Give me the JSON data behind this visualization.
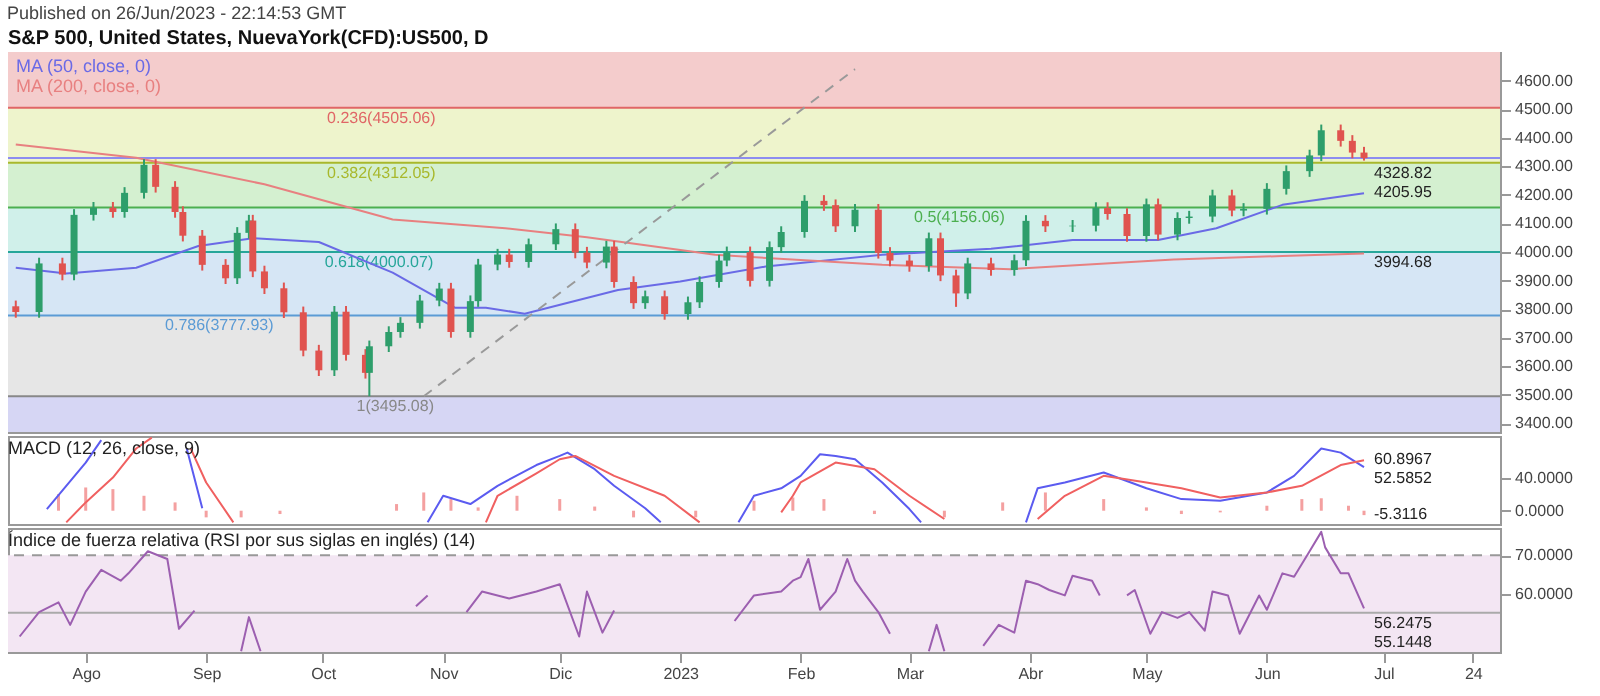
{
  "chart_data": [
    {
      "type": "candlestick",
      "title": "S&P 500, United States, NuevaYork(CFD):US500, D",
      "x": [
        "2022-07-14",
        "2022-07-20",
        "2022-07-26",
        "2022-07-29",
        "2022-08-03",
        "2022-08-08",
        "2022-08-11",
        "2022-08-16",
        "2022-08-19",
        "2022-08-24",
        "2022-08-26",
        "2022-08-31",
        "2022-09-06",
        "2022-09-09",
        "2022-09-12",
        "2022-09-13",
        "2022-09-16",
        "2022-09-21",
        "2022-09-26",
        "2022-09-30",
        "2022-10-04",
        "2022-10-07",
        "2022-10-12",
        "2022-10-13",
        "2022-10-18",
        "2022-10-21",
        "2022-10-26",
        "2022-10-31",
        "2022-11-03",
        "2022-11-08",
        "2022-11-10",
        "2022-11-15",
        "2022-11-18",
        "2022-11-23",
        "2022-11-30",
        "2022-12-05",
        "2022-12-08",
        "2022-12-13",
        "2022-12-15",
        "2022-12-20",
        "2022-12-23",
        "2022-12-28",
        "2023-01-03",
        "2023-01-06",
        "2023-01-11",
        "2023-01-13",
        "2023-01-19",
        "2023-01-24",
        "2023-01-27",
        "2023-02-02",
        "2023-02-07",
        "2023-02-10",
        "2023-02-15",
        "2023-02-21",
        "2023-02-24",
        "2023-03-01",
        "2023-03-06",
        "2023-03-09",
        "2023-03-13",
        "2023-03-16",
        "2023-03-22",
        "2023-03-28",
        "2023-03-31",
        "2023-04-05",
        "2023-04-12",
        "2023-04-18",
        "2023-04-21",
        "2023-04-26",
        "2023-05-01",
        "2023-05-04",
        "2023-05-09",
        "2023-05-12",
        "2023-05-18",
        "2023-05-23",
        "2023-05-26",
        "2023-06-01",
        "2023-06-06",
        "2023-06-12",
        "2023-06-15",
        "2023-06-20",
        "2023-06-23",
        "2023-06-26"
      ],
      "ohlc": [
        [
          3810,
          3830,
          3770,
          3790
        ],
        [
          3790,
          3980,
          3770,
          3960
        ],
        [
          3960,
          3980,
          3901,
          3921
        ],
        [
          3921,
          4150,
          3901,
          4130
        ],
        [
          4130,
          4175,
          4110,
          4155
        ],
        [
          4155,
          4175,
          4120,
          4140
        ],
        [
          4140,
          4227,
          4120,
          4207
        ],
        [
          4207,
          4325,
          4187,
          4305
        ],
        [
          4305,
          4325,
          4208,
          4228
        ],
        [
          4228,
          4248,
          4120,
          4140
        ],
        [
          4140,
          4160,
          4037,
          4057
        ],
        [
          4057,
          4077,
          3935,
          3955
        ],
        [
          3955,
          3975,
          3888,
          3908
        ],
        [
          3908,
          4087,
          3888,
          4067
        ],
        [
          4067,
          4130,
          4047,
          4110
        ],
        [
          4110,
          4130,
          3912,
          3932
        ],
        [
          3932,
          3952,
          3853,
          3873
        ],
        [
          3873,
          3893,
          3769,
          3789
        ],
        [
          3789,
          3809,
          3635,
          3655
        ],
        [
          3655,
          3675,
          3566,
          3586
        ],
        [
          3586,
          3811,
          3566,
          3791
        ],
        [
          3791,
          3811,
          3620,
          3640
        ],
        [
          3640,
          3660,
          3557,
          3577
        ],
        [
          3577,
          3690,
          3495,
          3670
        ],
        [
          3670,
          3740,
          3650,
          3720
        ],
        [
          3720,
          3772,
          3700,
          3752
        ],
        [
          3752,
          3850,
          3732,
          3830
        ],
        [
          3830,
          3892,
          3810,
          3872
        ],
        [
          3872,
          3892,
          3700,
          3720
        ],
        [
          3720,
          3848,
          3700,
          3828
        ],
        [
          3828,
          3976,
          3808,
          3956
        ],
        [
          3956,
          4011,
          3936,
          3991
        ],
        [
          3991,
          4011,
          3945,
          3965
        ],
        [
          3965,
          4047,
          3945,
          4027
        ],
        [
          4027,
          4100,
          4007,
          4080
        ],
        [
          4080,
          4100,
          3978,
          3998
        ],
        [
          3998,
          4018,
          3943,
          3963
        ],
        [
          3963,
          4039,
          3943,
          4019
        ],
        [
          4019,
          4039,
          3875,
          3895
        ],
        [
          3895,
          3915,
          3801,
          3821
        ],
        [
          3821,
          3865,
          3801,
          3845
        ],
        [
          3845,
          3865,
          3763,
          3783
        ],
        [
          3783,
          3844,
          3763,
          3824
        ],
        [
          3824,
          3915,
          3804,
          3895
        ],
        [
          3895,
          3990,
          3875,
          3970
        ],
        [
          3970,
          4019,
          3950,
          3999
        ],
        [
          3999,
          4019,
          3879,
          3899
        ],
        [
          3899,
          4037,
          3879,
          4017
        ],
        [
          4017,
          4090,
          3997,
          4070
        ],
        [
          4070,
          4199,
          4050,
          4179
        ],
        [
          4179,
          4199,
          4144,
          4164
        ],
        [
          4164,
          4184,
          4070,
          4090
        ],
        [
          4090,
          4168,
          4070,
          4148
        ],
        [
          4148,
          4168,
          3977,
          3997
        ],
        [
          3997,
          4017,
          3950,
          3970
        ],
        [
          3970,
          3990,
          3931,
          3951
        ],
        [
          3951,
          4068,
          3931,
          4048
        ],
        [
          4048,
          4068,
          3898,
          3918
        ],
        [
          3918,
          3938,
          3808,
          3855
        ],
        [
          3855,
          3980,
          3835,
          3960
        ],
        [
          3960,
          3980,
          3917,
          3937
        ],
        [
          3937,
          3991,
          3917,
          3971
        ],
        [
          3971,
          4129,
          3951,
          4109
        ],
        [
          4109,
          4129,
          4070,
          4090
        ],
        [
          4090,
          4112,
          4070,
          4092
        ],
        [
          4092,
          4174,
          4072,
          4154
        ],
        [
          4154,
          4174,
          4113,
          4133
        ],
        [
          4133,
          4153,
          4036,
          4056
        ],
        [
          4056,
          4187,
          4036,
          4167
        ],
        [
          4167,
          4187,
          4041,
          4061
        ],
        [
          4061,
          4139,
          4041,
          4119
        ],
        [
          4119,
          4144,
          4099,
          4124
        ],
        [
          4124,
          4218,
          4104,
          4198
        ],
        [
          4198,
          4218,
          4125,
          4145
        ],
        [
          4145,
          4171,
          4125,
          4151
        ],
        [
          4151,
          4241,
          4131,
          4221
        ],
        [
          4221,
          4303,
          4201,
          4283
        ],
        [
          4283,
          4358,
          4263,
          4338
        ],
        [
          4338,
          4446,
          4318,
          4426
        ],
        [
          4426,
          4446,
          4369,
          4389
        ],
        [
          4389,
          4409,
          4328,
          4348
        ],
        [
          4348,
          4368,
          4320,
          4328.82
        ]
      ],
      "colors": [
        "#e0534f",
        "#2e9e6b",
        "#e0534f",
        "#2e9e6b",
        "#2e9e6b",
        "#e0534f",
        "#2e9e6b",
        "#2e9e6b",
        "#e0534f",
        "#e0534f",
        "#e0534f",
        "#e0534f",
        "#e0534f",
        "#2e9e6b",
        "#2e9e6b",
        "#e0534f",
        "#e0534f",
        "#e0534f",
        "#e0534f",
        "#e0534f",
        "#2e9e6b",
        "#e0534f",
        "#e0534f",
        "#2e9e6b",
        "#2e9e6b",
        "#2e9e6b",
        "#2e9e6b",
        "#2e9e6b",
        "#e0534f",
        "#2e9e6b",
        "#2e9e6b",
        "#2e9e6b",
        "#e0534f",
        "#2e9e6b",
        "#2e9e6b",
        "#e0534f",
        "#e0534f",
        "#2e9e6b",
        "#e0534f",
        "#e0534f",
        "#2e9e6b",
        "#e0534f",
        "#2e9e6b",
        "#2e9e6b",
        "#2e9e6b",
        "#2e9e6b",
        "#e0534f",
        "#2e9e6b",
        "#2e9e6b",
        "#2e9e6b",
        "#e0534f",
        "#e0534f",
        "#2e9e6b",
        "#e0534f",
        "#e0534f",
        "#e0534f",
        "#2e9e6b",
        "#e0534f",
        "#e0534f",
        "#2e9e6b",
        "#e0534f",
        "#2e9e6b",
        "#2e9e6b",
        "#e0534f",
        "#2e9e6b",
        "#2e9e6b",
        "#e0534f",
        "#e0534f",
        "#2e9e6b",
        "#e0534f",
        "#2e9e6b",
        "#2e9e6b",
        "#2e9e6b",
        "#e0534f",
        "#2e9e6b",
        "#2e9e6b",
        "#2e9e6b",
        "#2e9e6b",
        "#2e9e6b",
        "#e0534f",
        "#e0534f",
        "#e0534f"
      ],
      "series": [
        {
          "name": "MA (50, close, 0)",
          "type": "line",
          "color": "#6a6ae6",
          "x": [
            "2022-07-14",
            "2022-07-27",
            "2022-08-14",
            "2022-08-30",
            "2022-09-13",
            "2022-09-30",
            "2022-10-19",
            "2022-11-04",
            "2022-11-12",
            "2022-11-22",
            "2022-12-16",
            "2023-01-01",
            "2023-01-23",
            "2023-02-22",
            "2023-03-22",
            "2023-04-12",
            "2023-05-04",
            "2023-05-19",
            "2023-06-05",
            "2023-06-26"
          ],
          "values": [
            3945,
            3925,
            3945,
            4021,
            4048,
            4035,
            3928,
            3805,
            3805,
            3784,
            3867,
            3897,
            3949,
            3990,
            4011,
            4042,
            4042,
            4083,
            4165,
            4205.95
          ]
        },
        {
          "name": "MA (200, close, 0)",
          "type": "line",
          "color": "#e88080",
          "x": [
            "2022-07-14",
            "2022-08-14",
            "2022-09-16",
            "2022-10-19",
            "2022-11-17",
            "2022-12-08",
            "2023-01-10",
            "2023-02-22",
            "2023-03-27",
            "2023-05-08",
            "2023-06-05",
            "2023-06-26"
          ],
          "values": [
            4376,
            4330,
            4237,
            4114,
            4083,
            4052,
            3990,
            3955,
            3940,
            3974,
            3986,
            3994.68
          ]
        },
        {
          "type": "line",
          "color": "#999999",
          "line_style": "dashed",
          "x": [
            "2022-10-27",
            "2023-02-15"
          ],
          "values": [
            3495.08,
            4640
          ]
        }
      ],
      "xlim": [
        "2022-07-12",
        "2023-07-31"
      ],
      "ylim": [
        3370,
        4700
      ],
      "yticks": [
        {
          "value": 3400,
          "label": "3400.00"
        },
        {
          "value": 3500,
          "label": "3500.00"
        },
        {
          "value": 3600,
          "label": "3600.00"
        },
        {
          "value": 3700,
          "label": "3700.00"
        },
        {
          "value": 3800,
          "label": "3800.00"
        },
        {
          "value": 3900,
          "label": "3900.00"
        },
        {
          "value": 4000,
          "label": "4000.00"
        },
        {
          "value": 4100,
          "label": "4100.00"
        },
        {
          "value": 4200,
          "label": "4200.00"
        },
        {
          "value": 4300,
          "label": "4300.00"
        },
        {
          "value": 4400,
          "label": "4400.00"
        },
        {
          "value": 4500,
          "label": "4500.00"
        },
        {
          "value": 4600,
          "label": "4600.00"
        }
      ],
      "tick_labels": "y",
      "bands": [
        {
          "axis": "y",
          "from": 4505.06,
          "to": 4700,
          "color": "#f4cccc"
        },
        {
          "axis": "y",
          "from": 4312.05,
          "to": 4505.06,
          "color": "#eef4cc"
        },
        {
          "axis": "y",
          "from": 4156.06,
          "to": 4312.05,
          "color": "#d4f0d0"
        },
        {
          "axis": "y",
          "from": 4000.07,
          "to": 4156.06,
          "color": "#d0f0ea"
        },
        {
          "axis": "y",
          "from": 3777.93,
          "to": 4000.07,
          "color": "#d6e6f5"
        },
        {
          "axis": "y",
          "from": 3495.08,
          "to": 3777.93,
          "color": "#e6e6e6"
        },
        {
          "axis": "y",
          "from": 3370,
          "to": 3495.08,
          "color": "#d6d6f4"
        }
      ],
      "ref_lines": [
        {
          "axis": "y",
          "value": 4328.82,
          "color": "#8c8cf0"
        },
        {
          "axis": "y",
          "value": 4505.06,
          "label": "0.236(4505.06)",
          "color": "#e06666"
        },
        {
          "axis": "y",
          "value": 4312.05,
          "label": "0.382(4312.05)",
          "color": "#a8b82c"
        },
        {
          "axis": "y",
          "value": 4156.06,
          "label": "0.5(4156.06)",
          "color": "#4caf50"
        },
        {
          "axis": "y",
          "value": 4000.07,
          "label": "0.618(4000.07)",
          "color": "#26a69a"
        },
        {
          "axis": "y",
          "value": 3777.93,
          "label": "0.786(3777.93)",
          "color": "#5b9bd5"
        },
        {
          "axis": "y",
          "value": 3495.08,
          "label": "1(3495.08)",
          "color": "#888888"
        }
      ],
      "annotations": [
        "Published on 26/Jun/2023 - 22:14:53 GMT",
        {
          "text": "4328.82",
          "x": "2023-06-26",
          "y": 4328.82
        },
        {
          "text": "4205.95",
          "x": "2023-06-26",
          "y": 4205.95
        },
        {
          "text": "3994.68",
          "x": "2023-06-26",
          "y": 3994.68
        }
      ]
    },
    {
      "type": "line",
      "title": "MACD (12, 26, close, 9)",
      "series": [
        {
          "type": "bar",
          "color": "#f4a0a0",
          "x": [
            "2022-07-25",
            "2022-08-01",
            "2022-08-08",
            "2022-08-16",
            "2022-08-24",
            "2022-09-01",
            "2022-09-10",
            "2022-09-20",
            "2022-10-20",
            "2022-10-27",
            "2022-11-03",
            "2022-11-10",
            "2022-11-20",
            "2022-12-01",
            "2022-12-10",
            "2022-12-20",
            "2023-01-05",
            "2023-01-20",
            "2023-01-30",
            "2023-02-07",
            "2023-02-20",
            "2023-03-10",
            "2023-03-25",
            "2023-04-05",
            "2023-04-20",
            "2023-05-01",
            "2023-05-10",
            "2023-05-20",
            "2023-06-01",
            "2023-06-10",
            "2023-06-15",
            "2023-06-22",
            "2023-06-26"
          ],
          "values": [
            20,
            28,
            26,
            18,
            10,
            -8,
            -8,
            -4,
            8,
            22,
            14,
            4,
            18,
            14,
            5,
            -8,
            -8,
            12,
            16,
            14,
            -4,
            -8,
            10,
            22,
            14,
            4,
            -4,
            -2,
            6,
            14,
            15,
            6,
            -5.3116
          ]
        },
        {
          "color": "#5b5bf0",
          "x": [
            "2022-07-22",
            "2022-08-01",
            "2022-08-05",
            "2022-08-08",
            "2022-08-24",
            "2022-08-27",
            "2022-08-31",
            "2022-09-03",
            "2022-10-26",
            "2022-10-28",
            "2022-11-01",
            "2022-11-08",
            "2022-11-15",
            "2022-11-25",
            "2022-12-01",
            "2022-12-03",
            "2022-12-10",
            "2022-12-15",
            "2022-12-23",
            "2022-12-27",
            "2022-12-30",
            "2023-01-14",
            "2023-01-16",
            "2023-01-20",
            "2023-01-27",
            "2023-02-01",
            "2023-02-06",
            "2023-02-10",
            "2023-02-15",
            "2023-02-22",
            "2023-03-01",
            "2023-03-04",
            "2023-03-06",
            "2023-03-29",
            "2023-03-31",
            "2023-04-03",
            "2023-04-10",
            "2023-04-20",
            "2023-05-01",
            "2023-05-10",
            "2023-05-20",
            "2023-06-01",
            "2023-06-08",
            "2023-06-15",
            "2023-06-20",
            "2023-06-26"
          ],
          "values": [
            2,
            58,
            85,
            null,
            null,
            75,
            3,
            null,
            null,
            -14,
            18,
            8,
            30,
            55,
            66,
            70,
            50,
            30,
            3,
            -14,
            null,
            null,
            -14,
            18,
            27,
            42,
            68,
            66,
            62,
            34,
            2,
            -14,
            null,
            null,
            -14,
            27,
            34,
            46,
            27,
            14,
            12,
            22,
            42,
            75,
            70,
            52.5852
          ]
        },
        {
          "color": "#f06060",
          "x": [
            "2022-07-27",
            "2022-08-01",
            "2022-08-08",
            "2022-08-14",
            "2022-08-18",
            "2022-08-20",
            "2022-08-26",
            "2022-08-28",
            "2022-09-01",
            "2022-09-08",
            "2022-09-10",
            "2022-11-10",
            "2022-11-12",
            "2022-11-15",
            "2022-11-25",
            "2022-12-01",
            "2022-12-05",
            "2022-12-15",
            "2022-12-28",
            "2023-01-06",
            "2023-01-08",
            "2023-01-25",
            "2023-01-27",
            "2023-01-30",
            "2023-02-01",
            "2023-02-10",
            "2023-02-20",
            "2023-03-01",
            "2023-03-10",
            "2023-03-13",
            "2023-04-01",
            "2023-04-03",
            "2023-04-10",
            "2023-04-20",
            "2023-05-01",
            "2023-05-10",
            "2023-05-20",
            "2023-06-01",
            "2023-06-10",
            "2023-06-20",
            "2023-06-26"
          ],
          "values": [
            -14,
            10,
            40,
            75,
            88,
            null,
            null,
            75,
            34,
            -14,
            null,
            null,
            -14,
            18,
            45,
            62,
            66,
            42,
            18,
            -14,
            null,
            null,
            -2,
            18,
            34,
            58,
            50,
            18,
            -10,
            null,
            null,
            -10,
            18,
            42,
            34,
            27,
            16,
            22,
            30,
            55,
            60.8967
          ]
        }
      ],
      "xlim": [
        "2022-07-12",
        "2023-07-31"
      ],
      "ylim": [
        -16,
        90
      ],
      "yticks": [
        {
          "value": 0,
          "label": "0.0000"
        },
        {
          "value": 40,
          "label": "40.0000"
        }
      ],
      "tick_labels": "y",
      "annotations": [
        {
          "text": "60.8967",
          "x": "2023-06-26",
          "y": 60.8967
        },
        {
          "text": "52.5852",
          "x": "2023-06-26",
          "y": 52.5852
        },
        {
          "text": "-5.3116",
          "x": "2023-06-26",
          "y": -5.3116
        }
      ]
    },
    {
      "type": "line",
      "title": "Índice de fuerza relativa (RSI por sus siglas en inglés) (14)",
      "series": [
        {
          "color": "#9c5fb0",
          "x": [
            "2022-07-15",
            "2022-07-20",
            "2022-07-25",
            "2022-07-28",
            "2022-08-01",
            "2022-08-05",
            "2022-08-10",
            "2022-08-12",
            "2022-08-17",
            "2022-08-22",
            "2022-08-25",
            "2022-08-29",
            "2022-09-01",
            "2022-09-10",
            "2022-09-12",
            "2022-09-15",
            "2022-10-22",
            "2022-10-25",
            "2022-10-28",
            "2022-11-02",
            "2022-11-07",
            "2022-11-11",
            "2022-11-18",
            "2022-11-25",
            "2022-12-01",
            "2022-12-06",
            "2022-12-08",
            "2022-12-12",
            "2022-12-15",
            "2022-12-20",
            "2023-01-13",
            "2023-01-15",
            "2023-01-20",
            "2023-01-27",
            "2023-01-30",
            "2023-02-01",
            "2023-02-03",
            "2023-02-06",
            "2023-02-10",
            "2023-02-13",
            "2023-02-15",
            "2023-02-17",
            "2023-02-21",
            "2023-02-24",
            "2023-03-01",
            "2023-03-06",
            "2023-03-08",
            "2023-03-10",
            "2023-03-18",
            "2023-03-20",
            "2023-03-24",
            "2023-03-28",
            "2023-03-31",
            "2023-04-03",
            "2023-04-06",
            "2023-04-10",
            "2023-04-12",
            "2023-04-17",
            "2023-04-19",
            "2023-04-21",
            "2023-04-24",
            "2023-04-26",
            "2023-04-28",
            "2023-05-02",
            "2023-05-05",
            "2023-05-09",
            "2023-05-12",
            "2023-05-16",
            "2023-05-18",
            "2023-05-22",
            "2023-05-25",
            "2023-05-30",
            "2023-06-01",
            "2023-06-05",
            "2023-06-08",
            "2023-06-12",
            "2023-06-15",
            "2023-06-16",
            "2023-06-20",
            "2023-06-22",
            "2023-06-26"
          ],
          "values": [
            49,
            55.3,
            57.8,
            52,
            60.6,
            66.2,
            63.4,
            65.3,
            71,
            69,
            51,
            55.7,
            null,
            45.2,
            54,
            45.2,
            null,
            56.8,
            59.6,
            null,
            55.3,
            60.6,
            58.8,
            60.6,
            62.5,
            49,
            60.6,
            50,
            55.7,
            null,
            null,
            53,
            59.6,
            60.6,
            63.4,
            64.3,
            69,
            55.9,
            60.6,
            69,
            63.4,
            60.6,
            55.3,
            49.7,
            null,
            45.2,
            52,
            45.2,
            null,
            46.6,
            52,
            50,
            63.4,
            62.5,
            61,
            59.6,
            64.7,
            63.4,
            59.6,
            null,
            null,
            59.6,
            61,
            49.7,
            55.3,
            53.8,
            55.3,
            50.5,
            60.6,
            59.6,
            49.7,
            59.6,
            55.9,
            65.3,
            64.4,
            71,
            76,
            72,
            65.3,
            65.3,
            56.2475
          ]
        }
      ],
      "xlim": [
        "2022-07-12",
        "2023-07-31"
      ],
      "xticks": [
        {
          "value": "2022-08-01",
          "label": "Ago"
        },
        {
          "value": "2022-09-01",
          "label": "Sep"
        },
        {
          "value": "2022-10-01",
          "label": "Oct"
        },
        {
          "value": "2022-11-01",
          "label": "Nov"
        },
        {
          "value": "2022-12-01",
          "label": "Dic"
        },
        {
          "value": "2023-01-01",
          "label": "2023"
        },
        {
          "value": "2023-02-01",
          "label": "Feb"
        },
        {
          "value": "2023-03-01",
          "label": "Mar"
        },
        {
          "value": "2023-04-01",
          "label": "Abr"
        },
        {
          "value": "2023-05-01",
          "label": "May"
        },
        {
          "value": "2023-06-01",
          "label": "Jun"
        },
        {
          "value": "2023-07-01",
          "label": "Jul"
        },
        {
          "value": "2023-07-24",
          "label": "24"
        }
      ],
      "ylim": [
        45,
        77
      ],
      "yticks": [
        {
          "value": 60,
          "label": "60.0000"
        },
        {
          "value": 70,
          "label": "70.0000"
        }
      ],
      "bands": [
        {
          "axis": "y",
          "from": 45,
          "to": 70,
          "color": "#f3e6f3"
        }
      ],
      "ref_lines": [
        {
          "axis": "y",
          "value": 70,
          "color": "#999999",
          "line_style": "dashed"
        },
        {
          "axis": "y",
          "value": 55.1448,
          "color": "#aaaaaa"
        }
      ],
      "annotations": [
        {
          "text": "56.2475",
          "x": "2023-06-26",
          "y": 56.2475
        },
        {
          "text": "55.1448",
          "x": "2023-06-26",
          "y": 55.1448
        }
      ]
    }
  ]
}
